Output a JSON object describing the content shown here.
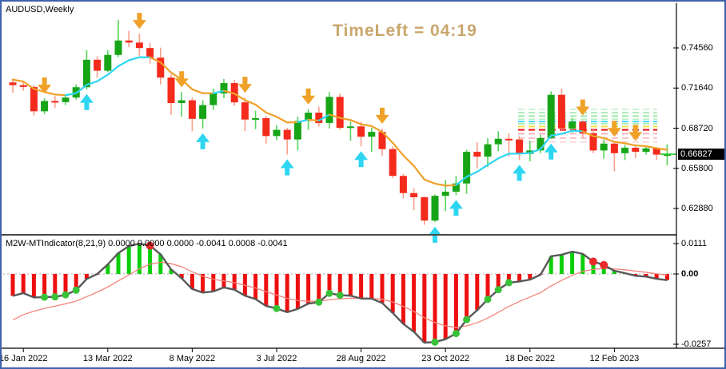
{
  "window": {
    "symbol_label": "AUDUSD,Weekly",
    "timer_label": "TimeLeft = 04:19",
    "timer_color": "#C9A66B",
    "frame_color": "#3E62AE",
    "background": "#FFFFFF"
  },
  "colors": {
    "bull_body": "#17A517",
    "bull_wick": "#55D45A",
    "bear_body": "#F42A1C",
    "bear_wick": "#F9A08B",
    "ma_up": "#2FD6F2",
    "ma_down": "#F0A128",
    "arrow_up": "#2FD6F2",
    "arrow_down": "#F0A128",
    "hist_green": "#0BCE0B",
    "hist_red": "#EE0F0F",
    "ind_main_line": "#595959",
    "ind_signal_line": "#F2857B",
    "dot_green": "#37C237",
    "dot_red": "#E92A2A",
    "close_tick": "#27C427",
    "axis": "#000000",
    "zero_line": "#AAAAAA",
    "badge_bg": "#000000",
    "badge_fg": "#FFFFFF"
  },
  "chart_data": [
    {
      "type": "candlestick",
      "symbol": "AUDUSD",
      "timeframe": "Weekly",
      "y_axis_labels": [
        "0.74560",
        "0.71640",
        "0.68720",
        "0.65800",
        "0.62880"
      ],
      "y_axis_values": [
        0.7456,
        0.7164,
        0.6872,
        0.658,
        0.6288
      ],
      "current_price": "0.66827",
      "current_price_value": 0.66827,
      "x_axis_labels": [
        "16 Jan 2022",
        "13 Mar 2022",
        "8 May 2022",
        "3 Jul 2022",
        "28 Aug 2022",
        "23 Oct 2022",
        "18 Dec 2022",
        "12 Feb 2023"
      ],
      "x_label_candle_indices": [
        1,
        9,
        17,
        25,
        33,
        41,
        49,
        57
      ],
      "candles": [
        [
          0.7205,
          0.7235,
          0.713,
          0.7185
        ],
        [
          0.7185,
          0.7215,
          0.7145,
          0.7172
        ],
        [
          0.7172,
          0.7185,
          0.6965,
          0.6995
        ],
        [
          0.6995,
          0.709,
          0.6975,
          0.707
        ],
        [
          0.707,
          0.7105,
          0.702,
          0.7062
        ],
        [
          0.7062,
          0.711,
          0.704,
          0.7095
        ],
        [
          0.7095,
          0.719,
          0.708,
          0.717
        ],
        [
          0.717,
          0.744,
          0.7155,
          0.737
        ],
        [
          0.737,
          0.7395,
          0.724,
          0.729
        ],
        [
          0.729,
          0.744,
          0.728,
          0.7405
        ],
        [
          0.7405,
          0.766,
          0.739,
          0.751
        ],
        [
          0.751,
          0.758,
          0.746,
          0.7495
        ],
        [
          0.7495,
          0.756,
          0.74,
          0.7455
        ],
        [
          0.7455,
          0.7493,
          0.7343,
          0.7385
        ],
        [
          0.7385,
          0.7458,
          0.719,
          0.724
        ],
        [
          0.724,
          0.7265,
          0.697,
          0.7055
        ],
        [
          0.7055,
          0.7135,
          0.6955,
          0.7075
        ],
        [
          0.7075,
          0.7095,
          0.685,
          0.694
        ],
        [
          0.694,
          0.7075,
          0.687,
          0.704
        ],
        [
          0.704,
          0.716,
          0.7005,
          0.7125
        ],
        [
          0.7125,
          0.723,
          0.709,
          0.72
        ],
        [
          0.72,
          0.7225,
          0.7035,
          0.706
        ],
        [
          0.706,
          0.7095,
          0.685,
          0.6935
        ],
        [
          0.6935,
          0.7,
          0.6865,
          0.6945
        ],
        [
          0.6945,
          0.696,
          0.676,
          0.6815
        ],
        [
          0.6815,
          0.6895,
          0.6785,
          0.686
        ],
        [
          0.686,
          0.6875,
          0.668,
          0.679
        ],
        [
          0.679,
          0.6955,
          0.671,
          0.6925
        ],
        [
          0.6925,
          0.701,
          0.686,
          0.6985
        ],
        [
          0.6985,
          0.703,
          0.6885,
          0.691
        ],
        [
          0.691,
          0.7135,
          0.687,
          0.71
        ],
        [
          0.71,
          0.7125,
          0.686,
          0.6875
        ],
        [
          0.6875,
          0.692,
          0.678,
          0.6885
        ],
        [
          0.6885,
          0.692,
          0.674,
          0.681
        ],
        [
          0.681,
          0.6875,
          0.67,
          0.6845
        ],
        [
          0.6845,
          0.687,
          0.667,
          0.672
        ],
        [
          0.672,
          0.674,
          0.651,
          0.6525
        ],
        [
          0.6525,
          0.654,
          0.636,
          0.64
        ],
        [
          0.64,
          0.6435,
          0.6275,
          0.637
        ],
        [
          0.637,
          0.6375,
          0.617,
          0.62
        ],
        [
          0.62,
          0.639,
          0.619,
          0.638
        ],
        [
          0.638,
          0.6495,
          0.627,
          0.641
        ],
        [
          0.641,
          0.6525,
          0.6385,
          0.647
        ],
        [
          0.647,
          0.6715,
          0.6395,
          0.67
        ],
        [
          0.67,
          0.677,
          0.658,
          0.6665
        ],
        [
          0.6665,
          0.68,
          0.659,
          0.6755
        ],
        [
          0.6755,
          0.685,
          0.6705,
          0.6795
        ],
        [
          0.6795,
          0.6835,
          0.6665,
          0.679
        ],
        [
          0.679,
          0.6815,
          0.664,
          0.6685
        ],
        [
          0.6685,
          0.678,
          0.663,
          0.671
        ],
        [
          0.671,
          0.6825,
          0.669,
          0.68
        ],
        [
          0.68,
          0.714,
          0.6795,
          0.7115
        ],
        [
          0.7115,
          0.716,
          0.686,
          0.687
        ],
        [
          0.687,
          0.6945,
          0.684,
          0.692
        ],
        [
          0.692,
          0.693,
          0.68,
          0.6835
        ],
        [
          0.6835,
          0.686,
          0.669,
          0.671
        ],
        [
          0.671,
          0.679,
          0.665,
          0.676
        ],
        [
          0.676,
          0.6775,
          0.656,
          0.669
        ],
        [
          0.669,
          0.675,
          0.664,
          0.673
        ],
        [
          0.673,
          0.6745,
          0.6655,
          0.67
        ],
        [
          0.67,
          0.674,
          0.668,
          0.6725
        ],
        [
          0.6725,
          0.6735,
          0.664,
          0.668
        ],
        [
          0.668,
          0.6755,
          0.66,
          0.66827
        ]
      ],
      "ma": {
        "type": "trend-colored-moving-average",
        "up_color": "#2FD6F2",
        "down_color": "#F0A128"
      },
      "arrows": {
        "down_indices": [
          3,
          12,
          16,
          22,
          28,
          35,
          54,
          57,
          59
        ],
        "up_indices": [
          7,
          18,
          26,
          33,
          40,
          42,
          48,
          51
        ]
      },
      "levels": [
        {
          "price": 0.701,
          "color": "#BDF0C6",
          "width": 1.6
        },
        {
          "price": 0.6985,
          "color": "#9BE8A9",
          "width": 1.6
        },
        {
          "price": 0.696,
          "color": "#8FE49E",
          "width": 1.6
        },
        {
          "price": 0.6938,
          "color": "#B9EFC2",
          "width": 1.6
        },
        {
          "price": 0.692,
          "color": "#2FD4E8",
          "width": 1.8
        },
        {
          "price": 0.6905,
          "color": "#A5EBB1",
          "width": 1.6
        },
        {
          "price": 0.6884,
          "color": "#F2E233",
          "width": 1.8
        },
        {
          "price": 0.686,
          "color": "#EE1515",
          "width": 2.2
        },
        {
          "price": 0.6832,
          "color": "#F5A6B0",
          "width": 1.6
        },
        {
          "price": 0.68,
          "color": "#F6B6BE",
          "width": 1.6
        },
        {
          "price": 0.6772,
          "color": "#FAD2D8",
          "width": 1.6
        }
      ]
    },
    {
      "type": "macd-histogram",
      "label": "M2W-MTIndicator(8,21,9) 0.0000 0.0000 0.0000 -0.0041 0.0008 -0.0041",
      "indicator_name": "M2W-MTIndicator",
      "params": "8,21,9",
      "values_shown": [
        "0.0000",
        "0.0000",
        "0.0000",
        "-0.0041",
        "0.0008",
        "-0.0041"
      ],
      "y_axis_labels": [
        "0.0111",
        "0.00",
        "-0.0257"
      ],
      "zero_label_bold": true,
      "dots": {
        "green_indices": [
          3,
          4,
          5,
          6,
          25,
          29,
          30,
          31,
          40,
          42,
          43,
          45,
          46,
          47
        ],
        "red_indices": [
          13,
          55,
          56
        ]
      }
    }
  ]
}
